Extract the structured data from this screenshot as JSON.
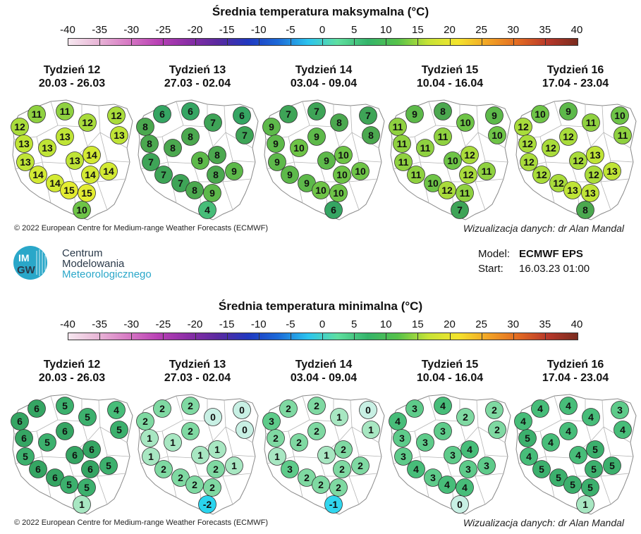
{
  "titles": {
    "max": "Średnia temperatura maksymalna (°C)",
    "min": "Średnia temperatura minimalna (°C)"
  },
  "scale": {
    "labels": [
      "-40",
      "-35",
      "-30",
      "-25",
      "-20",
      "-15",
      "-10",
      "-5",
      "0",
      "5",
      "10",
      "15",
      "20",
      "25",
      "30",
      "35",
      "40"
    ],
    "colors": [
      "#f6e7ef",
      "#e8b5d6",
      "#d779c4",
      "#b941b5",
      "#8b2ea6",
      "#5a2aa0",
      "#2038c0",
      "#1c6ad8",
      "#2bc4ee",
      "#5fdfa0",
      "#34b46a",
      "#56c24a",
      "#c6e336",
      "#f4e42d",
      "#f2a325",
      "#e36b22",
      "#b8382a",
      "#7a2b1e"
    ]
  },
  "weeks": [
    {
      "title": "Tydzień 12",
      "dates": "20.03 - 26.03"
    },
    {
      "title": "Tydzień 13",
      "dates": "27.03 - 02.04"
    },
    {
      "title": "Tydzień 14",
      "dates": "03.04 - 09.04"
    },
    {
      "title": "Tydzień 15",
      "dates": "10.04 - 16.04"
    },
    {
      "title": "Tydzień 16",
      "dates": "17.04 - 23.04"
    }
  ],
  "max_values": [
    [
      11,
      11,
      12,
      12,
      12,
      13,
      13,
      13,
      13,
      13,
      14,
      13,
      14,
      14,
      14,
      14,
      15,
      15,
      10
    ],
    [
      6,
      6,
      7,
      6,
      8,
      7,
      8,
      8,
      8,
      7,
      8,
      9,
      7,
      9,
      8,
      7,
      8,
      9,
      4
    ],
    [
      7,
      7,
      8,
      7,
      9,
      8,
      9,
      10,
      9,
      9,
      10,
      9,
      9,
      10,
      10,
      9,
      10,
      10,
      6
    ],
    [
      9,
      8,
      10,
      9,
      11,
      10,
      11,
      11,
      11,
      11,
      12,
      10,
      11,
      11,
      12,
      10,
      12,
      11,
      7
    ],
    [
      10,
      9,
      11,
      10,
      12,
      11,
      12,
      12,
      12,
      12,
      13,
      12,
      12,
      13,
      12,
      12,
      13,
      13,
      8
    ]
  ],
  "min_values": [
    [
      6,
      5,
      5,
      4,
      6,
      5,
      6,
      5,
      6,
      5,
      6,
      6,
      6,
      5,
      6,
      6,
      5,
      5,
      1
    ],
    [
      2,
      2,
      0,
      0,
      2,
      0,
      1,
      1,
      2,
      1,
      1,
      1,
      2,
      1,
      2,
      2,
      2,
      2,
      -2
    ],
    [
      2,
      2,
      1,
      0,
      3,
      1,
      2,
      2,
      2,
      1,
      2,
      1,
      3,
      2,
      2,
      2,
      2,
      2,
      -1
    ],
    [
      3,
      4,
      2,
      2,
      4,
      2,
      3,
      3,
      3,
      3,
      4,
      3,
      4,
      3,
      3,
      3,
      4,
      4,
      0
    ],
    [
      4,
      4,
      4,
      3,
      4,
      4,
      5,
      4,
      4,
      4,
      5,
      4,
      5,
      5,
      5,
      5,
      5,
      5,
      1
    ]
  ],
  "credits": {
    "copyright": "© 2022 European Centre for Medium-range Weather Forecasts (ECMWF)",
    "visualization": "Wizualizacja danych: dr Alan Mandal"
  },
  "logo": {
    "mark_top": "IM",
    "mark_bottom": "GW",
    "line1": "Centrum",
    "line2": "Modelowania",
    "line3": "Meteorologicznego"
  },
  "model": {
    "model_label": "Model:",
    "model_value": "ECMWF EPS",
    "start_label": "Start:",
    "start_value": "16.03.23 01:00"
  }
}
